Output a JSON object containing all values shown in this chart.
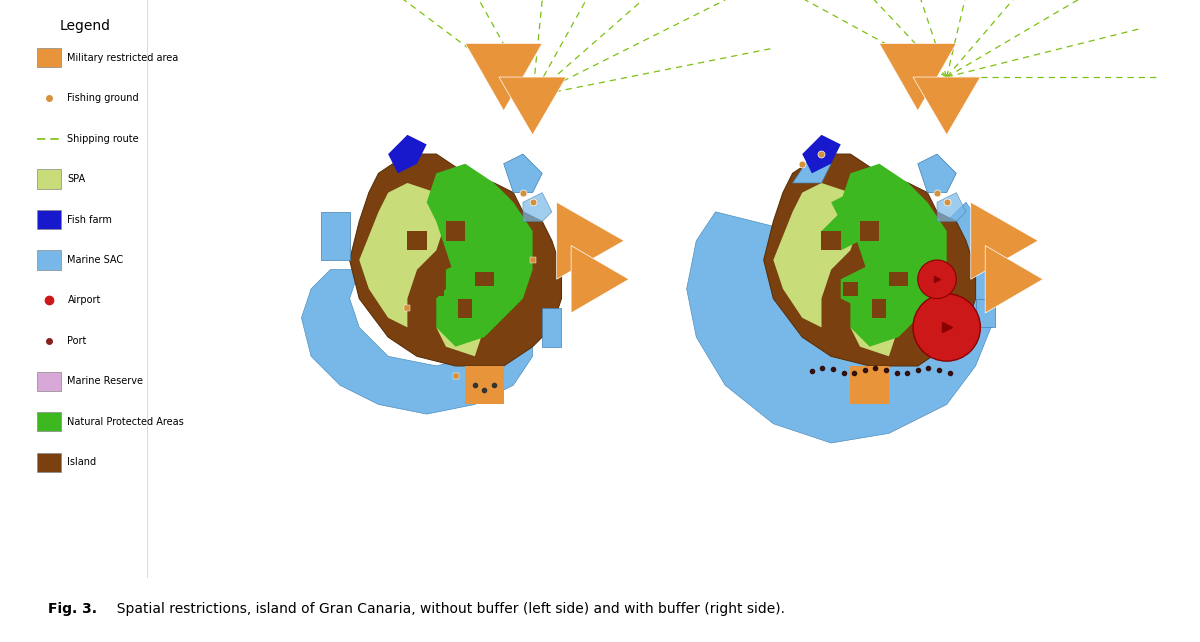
{
  "title": "Fig. 3.",
  "caption": "  Spatial restrictions, island of Gran Canaria, without buffer (left side) and with buffer (right side).",
  "legend_title": "Legend",
  "legend_items": [
    {
      "label": "Military restricted area",
      "type": "patch",
      "color": "#E8943A"
    },
    {
      "label": "Fishing ground",
      "type": "marker",
      "color": "#D4913A",
      "marker": "o"
    },
    {
      "label": "Shipping route",
      "type": "line",
      "color": "#7DC010",
      "linestyle": "--"
    },
    {
      "label": "SPA",
      "type": "patch",
      "color": "#C8DC7A"
    },
    {
      "label": "Fish farm",
      "type": "patch",
      "color": "#1818CC"
    },
    {
      "label": "Marine SAC",
      "type": "patch",
      "color": "#78B8E8"
    },
    {
      "label": "Airport",
      "type": "marker",
      "color": "#CC1818",
      "marker": "o"
    },
    {
      "label": "Port",
      "type": "marker",
      "color": "#882020",
      "marker": "o"
    },
    {
      "label": "Marine Reserve",
      "type": "patch",
      "color": "#D8A8D8"
    },
    {
      "label": "Natural Protected Areas",
      "type": "patch",
      "color": "#3DB820"
    },
    {
      "label": "Island",
      "type": "patch",
      "color": "#7B4010"
    }
  ],
  "island_color": "#7B4010",
  "natural_protected_color": "#3DB820",
  "spa_color": "#C8DC7A",
  "marine_sac_color": "#78B8E8",
  "fish_farm_color": "#1818CC",
  "marine_reserve_color": "#D8A8D8",
  "military_color": "#E8943A",
  "airport_color": "#CC1818",
  "port_color": "#882020",
  "fishing_ground_color": "#D4913A",
  "shipping_color": "#7DC010",
  "bg_color": "#FFFFFF",
  "buffer_color": "#78B8E8"
}
